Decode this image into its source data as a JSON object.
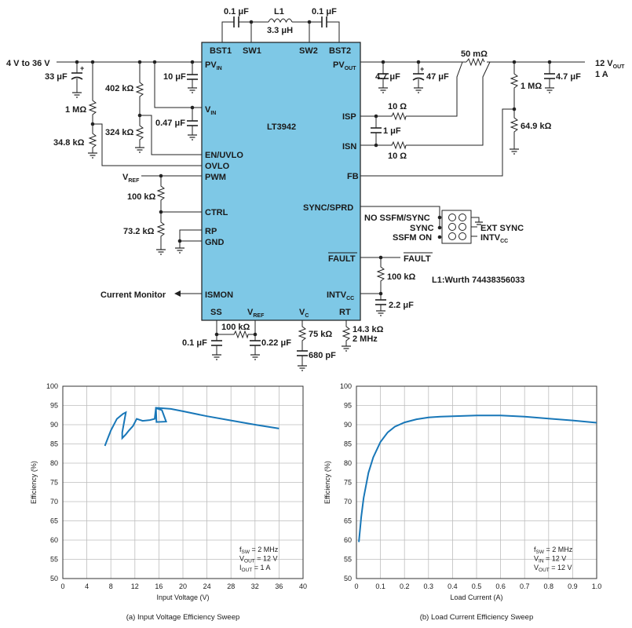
{
  "schematic": {
    "ic_name": "LT3942",
    "pins_left": [
      {
        "name": "PV",
        "sub": "IN"
      },
      {
        "name": "V",
        "sub": "IN"
      },
      {
        "name": "EN/UVLO",
        "sub": ""
      },
      {
        "name": "OVLO",
        "sub": ""
      },
      {
        "name": "PWM",
        "sub": ""
      },
      {
        "name": "CTRL",
        "sub": ""
      },
      {
        "name": "RP",
        "sub": ""
      },
      {
        "name": "GND",
        "sub": ""
      },
      {
        "name": "ISMON",
        "sub": ""
      }
    ],
    "pins_top": [
      "BST1",
      "SW1",
      "SW2",
      "BST2"
    ],
    "pins_right": [
      {
        "name": "PV",
        "sub": "OUT"
      },
      {
        "name": "ISP",
        "sub": ""
      },
      {
        "name": "ISN",
        "sub": ""
      },
      {
        "name": "FB",
        "sub": ""
      },
      {
        "name": "SYNC/SPRD",
        "sub": ""
      },
      {
        "name": "FAULT",
        "sub": ""
      },
      {
        "name": "INTV",
        "sub": "CC"
      }
    ],
    "pins_bottom": [
      {
        "name": "SS",
        "sub": ""
      },
      {
        "name": "V",
        "sub": "REF"
      },
      {
        "name": "V",
        "sub": "C"
      },
      {
        "name": "RT",
        "sub": ""
      }
    ],
    "input_label": "4 V to 36 V",
    "output_label": "12 V",
    "output_label_sub": "OUT",
    "output_current": "1 A",
    "inductor": "L1",
    "inductor_value": "3.3 μH",
    "cap_bst1": "0.1 μF",
    "cap_bst2": "0.1 μF",
    "cin": "33 μF",
    "r_uvlo_top": "1 MΩ",
    "r_uvlo_bot": "34.8 kΩ",
    "r_ovlo_top": "402 kΩ",
    "r_ovlo_bot": "324 kΩ",
    "c_pvin": "10 μF",
    "c_vin": "0.47 μF",
    "c_out1": "4.7 μF",
    "c_out2": "47 μF",
    "r_sense": "50 mΩ",
    "r_isp": "10 Ω",
    "r_isn": "10 Ω",
    "c_isp": "1 μF",
    "r_fb_top": "1 MΩ",
    "r_fb_bot": "64.9 kΩ",
    "c_out3": "4.7 μF",
    "vref_label": "V",
    "vref_sub": "REF",
    "r_ctrl_top": "100 kΩ",
    "r_ctrl_bot": "73.2 kΩ",
    "current_monitor": "Current Monitor",
    "sync_options": [
      "NO SSFM/SYNC",
      "SYNC",
      "SSFM ON"
    ],
    "ext_sync": "EXT SYNC",
    "intvcc_label": "INTV",
    "intvcc_sub": "CC",
    "fault_label": "FAULT",
    "r_fault": "100 kΩ",
    "l1_note": "L1:Wurth 74438356033",
    "c_intvcc": "2.2 μF",
    "c_ss": "0.1 μF",
    "r_ss": "100 kΩ",
    "c_vref": "0.22 μF",
    "r_vc": "75 kΩ",
    "c_vc": "680 pF",
    "r_rt": "14.3 kΩ",
    "rt_freq": "2 MHz"
  },
  "chart_data": [
    {
      "type": "line",
      "caption": "(a) Input Voltage Efficiency Sweep",
      "xlabel": "Input Voltage (V)",
      "ylabel": "Efficiency (%)",
      "xlim": [
        0,
        40
      ],
      "ylim": [
        50,
        100
      ],
      "xticks": [
        "0",
        "4",
        "8",
        "12",
        "16",
        "20",
        "24",
        "28",
        "32",
        "36",
        "40"
      ],
      "yticks": [
        "50",
        "55",
        "60",
        "65",
        "70",
        "75",
        "80",
        "85",
        "90",
        "95",
        "100"
      ],
      "grid": true,
      "series": [
        {
          "x": [
            7,
            7.5,
            8,
            9,
            10,
            10.5,
            9.9,
            9.9,
            10.5,
            11,
            11.7,
            12.3,
            13.3,
            14.5,
            15.3,
            15.5,
            16.5,
            17.2,
            15.6,
            15.5,
            18,
            20,
            24,
            28,
            32,
            36
          ],
          "y": [
            84.5,
            86.5,
            88.5,
            91.5,
            92.8,
            93.2,
            88,
            86.5,
            87.5,
            88.5,
            89.7,
            91.5,
            91,
            91.2,
            91.5,
            94.3,
            93.8,
            90.8,
            90.7,
            94.4,
            94.1,
            93.5,
            92.2,
            91.1,
            90,
            89
          ]
        }
      ],
      "annotation": [
        {
          "name": "f",
          "sub": "SW",
          "value": " = 2 MHz"
        },
        {
          "name": "V",
          "sub": "OUT",
          "value": " = 12 V"
        },
        {
          "name": "I",
          "sub": "OUT",
          "value": " = 1 A"
        }
      ]
    },
    {
      "type": "line",
      "caption": "(b) Load Current Efficiency Sweep",
      "xlabel": "Load Current (A)",
      "ylabel": "Efficiency (%)",
      "xlim": [
        0,
        1
      ],
      "ylim": [
        50,
        100
      ],
      "xticks": [
        "0",
        "0.1",
        "0.2",
        "0.3",
        "0.4",
        "0.5",
        "0.6",
        "0.7",
        "0.8",
        "0.9",
        "1.0"
      ],
      "yticks": [
        "50",
        "55",
        "60",
        "65",
        "70",
        "75",
        "80",
        "85",
        "90",
        "95",
        "100"
      ],
      "grid": true,
      "series": [
        {
          "x": [
            0.01,
            0.02,
            0.03,
            0.05,
            0.07,
            0.1,
            0.13,
            0.16,
            0.2,
            0.25,
            0.3,
            0.35,
            0.4,
            0.5,
            0.6,
            0.7,
            0.8,
            0.9,
            1.0
          ],
          "y": [
            59.5,
            66,
            71,
            77.5,
            81.5,
            85.5,
            88,
            89.5,
            90.6,
            91.4,
            91.9,
            92.1,
            92.2,
            92.4,
            92.4,
            92.1,
            91.6,
            91.1,
            90.5
          ]
        }
      ],
      "annotation": [
        {
          "name": "f",
          "sub": "SW",
          "value": " = 2 MHz"
        },
        {
          "name": "V",
          "sub": "IN",
          "value": " = 12 V"
        },
        {
          "name": "V",
          "sub": "OUT",
          "value": " = 12 V"
        }
      ]
    }
  ]
}
